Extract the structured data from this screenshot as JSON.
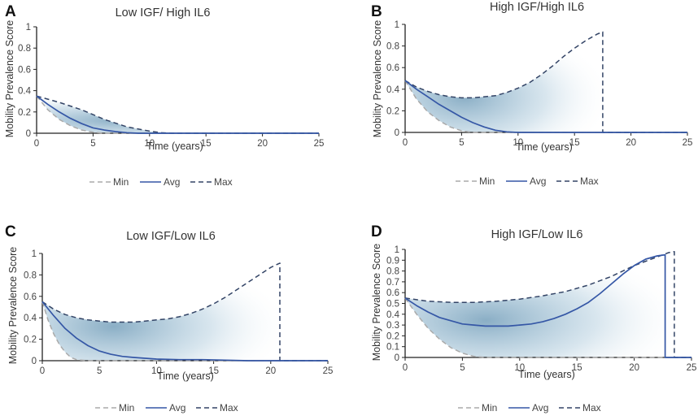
{
  "chart_data": [
    {
      "panel": "A",
      "type": "line",
      "title": "Low IGF/ High IL6",
      "xlabel": "Time (years)",
      "ylabel": "Mobility Prevalence Score",
      "xlim": [
        0,
        25
      ],
      "ylim": [
        0,
        1
      ],
      "xticks": [
        "0",
        "5",
        "10",
        "15",
        "20",
        "25"
      ],
      "yticks": [
        "0",
        "0.2",
        "0.4",
        "0.6",
        "0.8",
        "1"
      ],
      "series": [
        {
          "name": "Min",
          "style": "dashed",
          "color": "#aaaaaa",
          "x": [
            0,
            1,
            2,
            3,
            4,
            5,
            6,
            7,
            8,
            25
          ],
          "y": [
            0.35,
            0.22,
            0.13,
            0.07,
            0.03,
            0.01,
            0.0,
            0.0,
            0.0,
            0.0
          ]
        },
        {
          "name": "Avg",
          "style": "solid",
          "color": "#3557a6",
          "x": [
            0,
            1,
            2,
            3,
            4,
            5,
            6,
            7,
            8,
            9,
            10,
            25
          ],
          "y": [
            0.35,
            0.27,
            0.2,
            0.14,
            0.09,
            0.05,
            0.03,
            0.015,
            0.005,
            0.0,
            0.0,
            0.0
          ]
        },
        {
          "name": "Max",
          "style": "dashed",
          "color": "#334466",
          "x": [
            0,
            1,
            2,
            4,
            6,
            8,
            10,
            11,
            12,
            25
          ],
          "y": [
            0.35,
            0.32,
            0.29,
            0.22,
            0.13,
            0.06,
            0.02,
            0.005,
            0.0,
            0.0
          ]
        }
      ]
    },
    {
      "panel": "B",
      "type": "line",
      "title": "High IGF/High IL6",
      "xlabel": "Time (years)",
      "ylabel": "Mobility Prevalence Score",
      "xlim": [
        0,
        25
      ],
      "ylim": [
        0,
        1
      ],
      "xticks": [
        "0",
        "5",
        "10",
        "15",
        "20",
        "25"
      ],
      "yticks": [
        "0",
        "0.2",
        "0.4",
        "0.6",
        "0.8",
        "1"
      ],
      "series": [
        {
          "name": "Min",
          "style": "dashed",
          "color": "#aaaaaa",
          "x": [
            0,
            1,
            2,
            3,
            4,
            5,
            6,
            25
          ],
          "y": [
            0.48,
            0.31,
            0.19,
            0.11,
            0.05,
            0.015,
            0.0,
            0.0
          ]
        },
        {
          "name": "Avg",
          "style": "solid",
          "color": "#3557a6",
          "x": [
            0,
            1,
            2,
            3,
            4,
            5,
            6,
            7,
            8,
            9,
            10,
            25
          ],
          "y": [
            0.48,
            0.4,
            0.33,
            0.26,
            0.2,
            0.14,
            0.09,
            0.05,
            0.02,
            0.005,
            0.0,
            0.0
          ]
        },
        {
          "name": "Max",
          "style": "dashed",
          "color": "#334466",
          "x": [
            0,
            1,
            2,
            3,
            4,
            5,
            6,
            7,
            8,
            9,
            10,
            11,
            12,
            13,
            14,
            15,
            16,
            17,
            17.5,
            17.5,
            18,
            25
          ],
          "y": [
            0.48,
            0.42,
            0.38,
            0.35,
            0.33,
            0.32,
            0.32,
            0.33,
            0.34,
            0.37,
            0.41,
            0.46,
            0.53,
            0.61,
            0.7,
            0.78,
            0.85,
            0.91,
            0.93,
            0.0,
            0.0,
            0.0
          ]
        }
      ]
    },
    {
      "panel": "C",
      "type": "line",
      "title": "Low IGF/Low IL6",
      "xlabel": "Time (years)",
      "ylabel": "Mobility Prevalence Score",
      "xlim": [
        0,
        25
      ],
      "ylim": [
        0,
        1
      ],
      "xticks": [
        "0",
        "5",
        "10",
        "15",
        "20",
        "25"
      ],
      "yticks": [
        "0",
        "0.2",
        "0.4",
        "0.6",
        "0.8",
        "1"
      ],
      "series": [
        {
          "name": "Min",
          "style": "dashed",
          "color": "#aaaaaa",
          "x": [
            0,
            0.5,
            1,
            1.5,
            2,
            2.5,
            3,
            4,
            25
          ],
          "y": [
            0.55,
            0.38,
            0.25,
            0.15,
            0.08,
            0.03,
            0.01,
            0.0,
            0.0
          ]
        },
        {
          "name": "Avg",
          "style": "solid",
          "color": "#3557a6",
          "x": [
            0,
            1,
            2,
            3,
            4,
            5,
            6,
            7,
            8,
            10,
            12,
            14,
            16,
            18,
            25
          ],
          "y": [
            0.55,
            0.42,
            0.3,
            0.21,
            0.14,
            0.09,
            0.06,
            0.04,
            0.03,
            0.015,
            0.01,
            0.01,
            0.005,
            0.0,
            0.0
          ]
        },
        {
          "name": "Max",
          "style": "dashed",
          "color": "#334466",
          "x": [
            0,
            1,
            2,
            3,
            4,
            5,
            6,
            7,
            8,
            9,
            10,
            11,
            12,
            13,
            14,
            15,
            16,
            17,
            18,
            19,
            20,
            20.8,
            20.8,
            25
          ],
          "y": [
            0.55,
            0.48,
            0.43,
            0.4,
            0.38,
            0.37,
            0.36,
            0.36,
            0.36,
            0.37,
            0.38,
            0.39,
            0.41,
            0.44,
            0.48,
            0.53,
            0.59,
            0.66,
            0.73,
            0.8,
            0.87,
            0.91,
            0.0,
            0.0
          ]
        }
      ]
    },
    {
      "panel": "D",
      "type": "line",
      "title": "High IGF/Low IL6",
      "xlabel": "Time (years)",
      "ylabel": "Mobility Prevalence Score",
      "xlim": [
        0,
        25
      ],
      "ylim": [
        0,
        1
      ],
      "xticks": [
        "0",
        "5",
        "10",
        "15",
        "20",
        "25"
      ],
      "yticks": [
        "0",
        "0.1",
        "0.2",
        "0.3",
        "0.4",
        "0.5",
        "0.6",
        "0.7",
        "0.8",
        "0.9",
        "1"
      ],
      "series": [
        {
          "name": "Min",
          "style": "dashed",
          "color": "#aaaaaa",
          "x": [
            0,
            1,
            2,
            3,
            4,
            5,
            6,
            7,
            25
          ],
          "y": [
            0.55,
            0.4,
            0.27,
            0.17,
            0.09,
            0.04,
            0.01,
            0.0,
            0.0
          ]
        },
        {
          "name": "Avg",
          "style": "solid",
          "color": "#3557a6",
          "x": [
            0,
            1,
            2,
            3,
            4,
            5,
            6,
            7,
            8,
            9,
            10,
            11,
            12,
            13,
            14,
            15,
            16,
            17,
            18,
            19,
            20,
            21,
            22,
            22.7,
            22.7,
            25
          ],
          "y": [
            0.55,
            0.48,
            0.42,
            0.37,
            0.34,
            0.31,
            0.3,
            0.29,
            0.29,
            0.29,
            0.3,
            0.31,
            0.33,
            0.36,
            0.4,
            0.45,
            0.51,
            0.59,
            0.68,
            0.77,
            0.85,
            0.91,
            0.94,
            0.95,
            0.0,
            0.0
          ]
        },
        {
          "name": "Max",
          "style": "dashed",
          "color": "#334466",
          "x": [
            0,
            2,
            4,
            6,
            8,
            10,
            12,
            14,
            16,
            18,
            20,
            22,
            23,
            23.5,
            23.5,
            25
          ],
          "y": [
            0.55,
            0.52,
            0.51,
            0.51,
            0.52,
            0.54,
            0.57,
            0.61,
            0.67,
            0.75,
            0.85,
            0.93,
            0.97,
            0.98,
            0.0,
            0.0
          ]
        }
      ]
    }
  ]
}
